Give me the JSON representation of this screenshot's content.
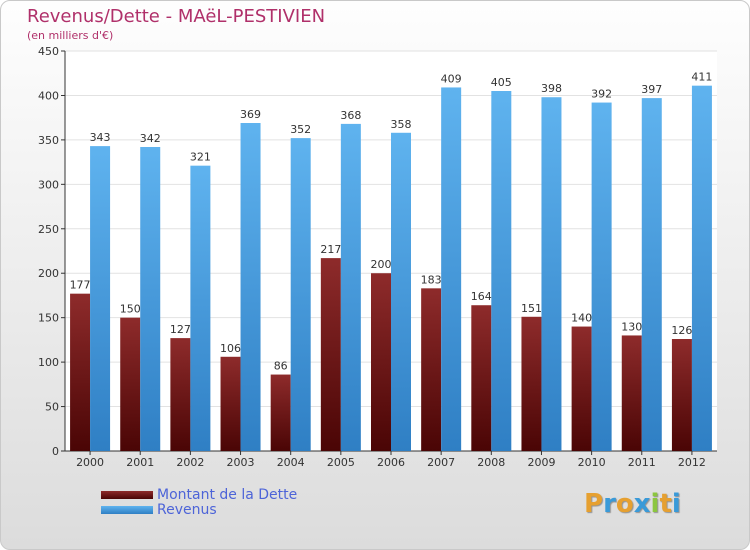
{
  "title": "Revenus/Dette - MAëL-PESTIVIEN",
  "subtitle": "(en milliers d'€)",
  "logo": {
    "letters": [
      "P",
      "r",
      "o",
      "x",
      "i",
      "t",
      "i"
    ],
    "colors": [
      "#e6a030",
      "#3a9ad8",
      "#e6a030",
      "#3a9ad8",
      "#8cc63f",
      "#e6a030",
      "#3a9ad8"
    ]
  },
  "chart_data": {
    "type": "bar",
    "categories": [
      "2000",
      "2001",
      "2002",
      "2003",
      "2004",
      "2005",
      "2006",
      "2007",
      "2008",
      "2009",
      "2010",
      "2011",
      "2012"
    ],
    "series": [
      {
        "name": "Montant de la Dette",
        "color": "#7a1d1d",
        "values": [
          177,
          150,
          127,
          106,
          86,
          217,
          200,
          183,
          164,
          151,
          140,
          130,
          126
        ]
      },
      {
        "name": "Revenus",
        "color": "#4ca3e6",
        "values": [
          343,
          342,
          321,
          369,
          352,
          368,
          358,
          409,
          405,
          398,
          392,
          397,
          411
        ]
      }
    ],
    "ylim": [
      0,
      450
    ],
    "yticks": [
      0,
      50,
      100,
      150,
      200,
      250,
      300,
      350,
      400,
      450
    ],
    "grid": true,
    "legend": "bottom-left"
  }
}
